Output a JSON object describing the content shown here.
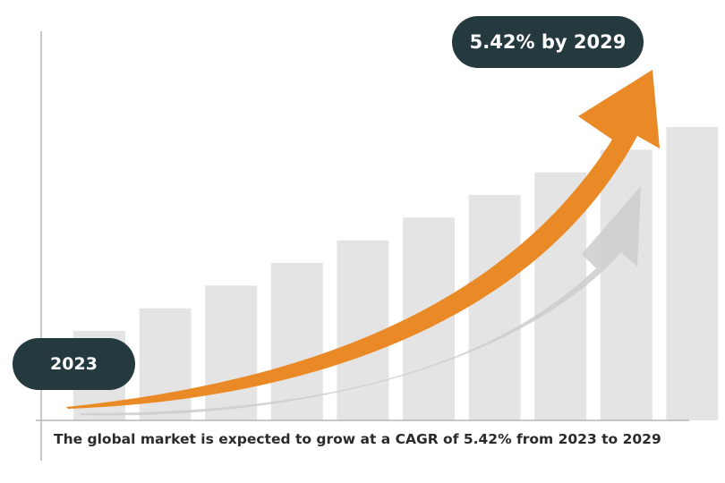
{
  "chart_data": {
    "type": "bar",
    "title": "",
    "xlabel": "",
    "ylabel": "",
    "categories": [
      "2023",
      "",
      "",
      "",
      "",
      "",
      "",
      "",
      "",
      "2029"
    ],
    "values": [
      1,
      2,
      3,
      4,
      5,
      6,
      7,
      8,
      9,
      10
    ],
    "bar_color": "#e4e4e4",
    "arrow_color": "#ea8a26",
    "shadow_arrow_color": "#cccccc",
    "grid": false,
    "legend": "none"
  },
  "labels": {
    "start": "2023",
    "end": "5.42% by 2029",
    "caption": "The global market is expected to grow at a CAGR of 5.42% from 2023 to 2029"
  },
  "colors": {
    "pill_bg": "#253a3f",
    "pill_text": "#ffffff",
    "axis": "#b5b5b5"
  }
}
